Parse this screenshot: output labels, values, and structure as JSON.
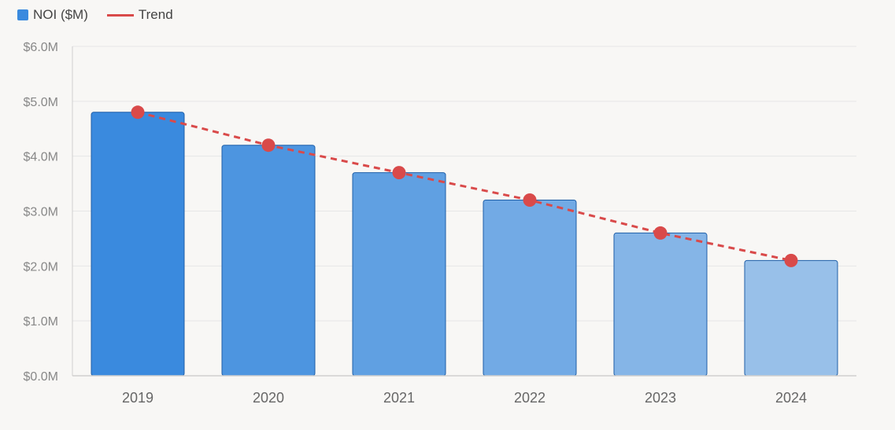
{
  "legend": {
    "bar_label": "NOI ($M)",
    "line_label": "Trend"
  },
  "chart_data": {
    "type": "bar",
    "categories": [
      "2019",
      "2020",
      "2021",
      "2022",
      "2023",
      "2024"
    ],
    "series": [
      {
        "name": "NOI ($M)",
        "type": "bar",
        "values": [
          4.8,
          4.2,
          3.7,
          3.2,
          2.6,
          2.1
        ]
      },
      {
        "name": "Trend",
        "type": "line",
        "style": "dashed",
        "values": [
          4.8,
          4.2,
          3.7,
          3.2,
          2.6,
          2.1
        ]
      }
    ],
    "y_ticks": [
      "$0.0M",
      "$1.0M",
      "$2.0M",
      "$3.0M",
      "$4.0M",
      "$5.0M",
      "$6.0M"
    ],
    "ylim": [
      0,
      6
    ],
    "grid": true,
    "legend_position": "top-left",
    "colors": {
      "bar_start": "#3a8ade",
      "bar_end": "#98c0e9",
      "bar_stroke": "#1f5fa8",
      "trend": "#d94a4a",
      "axis": "#cfcfcf",
      "grid": "#e6e6e6"
    }
  }
}
